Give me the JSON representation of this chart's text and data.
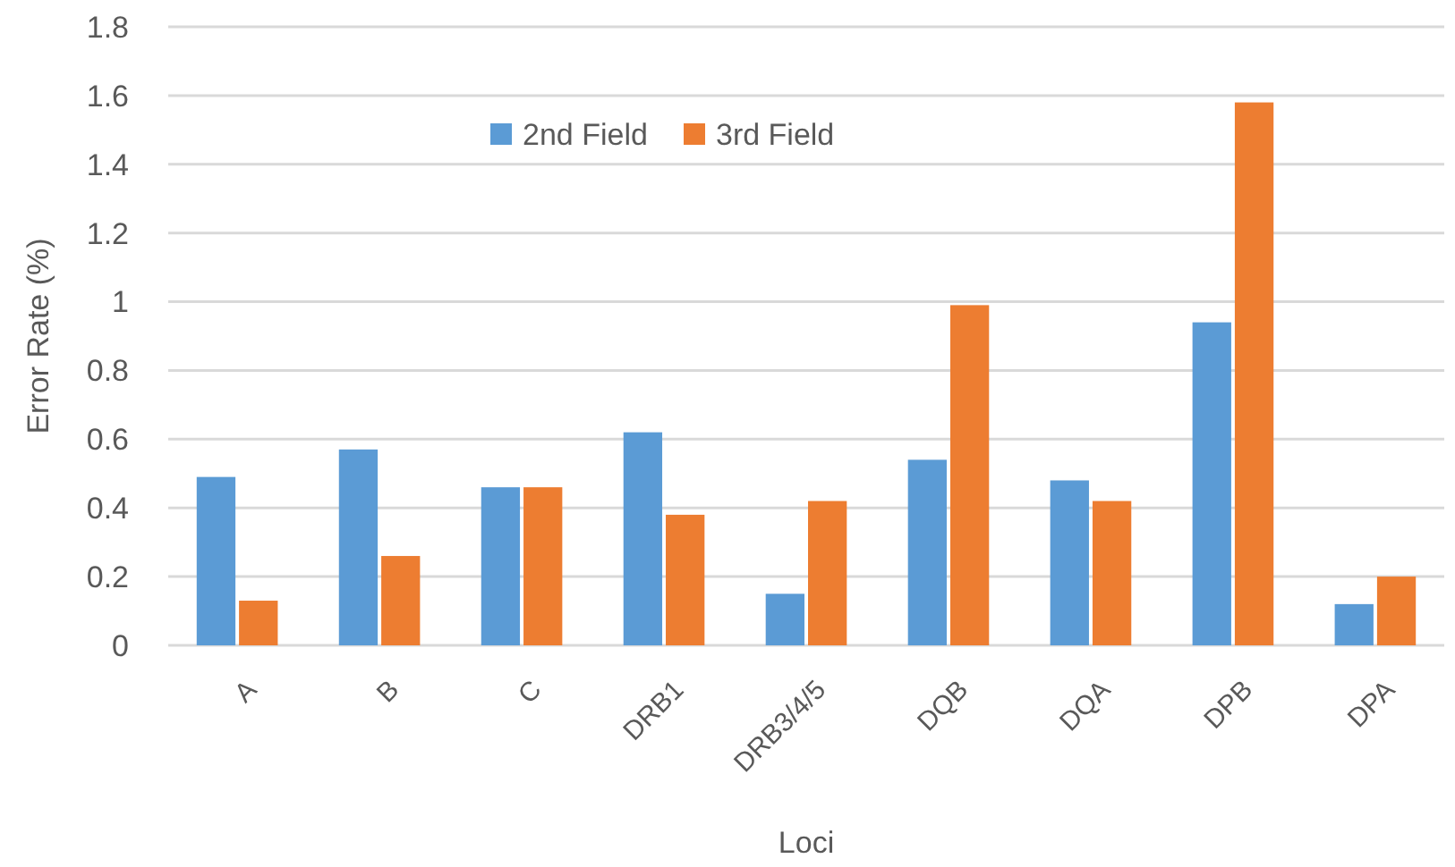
{
  "chart_data": {
    "type": "bar",
    "xlabel": "Loci",
    "ylabel": "Error Rate (%)",
    "categories": [
      "A",
      "B",
      "C",
      "DRB1",
      "DRB3/4/5",
      "DQB",
      "DQA",
      "DPB",
      "DPA"
    ],
    "series": [
      {
        "name": "2nd Field",
        "color": "#5b9bd5",
        "values": [
          0.49,
          0.57,
          0.46,
          0.62,
          0.15,
          0.54,
          0.48,
          0.94,
          0.12
        ]
      },
      {
        "name": "3rd Field",
        "color": "#ed7d31",
        "values": [
          0.13,
          0.26,
          0.46,
          0.38,
          0.42,
          0.99,
          0.42,
          1.58,
          0.2
        ]
      }
    ],
    "ylim": [
      0,
      1.8
    ],
    "yticks": [
      0,
      0.2,
      0.4,
      0.6,
      0.8,
      1,
      1.2,
      1.4,
      1.6,
      1.8
    ],
    "grid": "y",
    "legend": "top"
  }
}
